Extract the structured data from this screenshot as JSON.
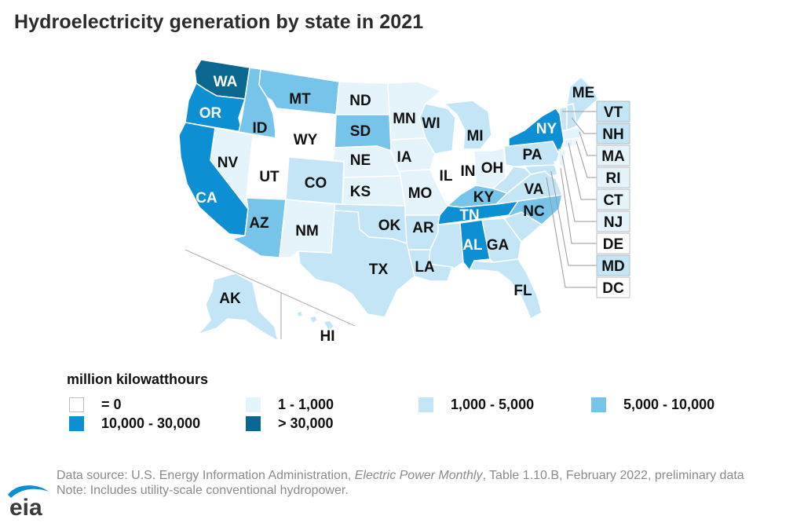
{
  "title": "Hydroelectricity generation by state in 2021",
  "colors": {
    "c0": "#ffffff",
    "c1": "#e5f4fb",
    "c2": "#c4e5f5",
    "c3": "#77c4ea",
    "c4": "#0d8fd4",
    "c5": "#0a6890",
    "border": "#ffffff",
    "leader": "#9a9a9a",
    "source_text": "#8a8a8a"
  },
  "legend": {
    "title": "million kilowatthours",
    "items": [
      {
        "label": "= 0",
        "color": "#ffffff"
      },
      {
        "label": "1 - 1,000",
        "color": "#e5f4fb"
      },
      {
        "label": "1,000 - 5,000",
        "color": "#c4e5f5"
      },
      {
        "label": "5,000 - 10,000",
        "color": "#77c4ea"
      },
      {
        "label": "10,000 - 30,000",
        "color": "#0d8fd4"
      },
      {
        "label": "> 30,000",
        "color": "#0a6890"
      }
    ]
  },
  "states": [
    {
      "code": "WA",
      "bin": "> 30,000"
    },
    {
      "code": "OR",
      "bin": "10,000 - 30,000"
    },
    {
      "code": "CA",
      "bin": "10,000 - 30,000"
    },
    {
      "code": "NY",
      "bin": "10,000 - 30,000"
    },
    {
      "code": "TN",
      "bin": "10,000 - 30,000"
    },
    {
      "code": "AL",
      "bin": "10,000 - 30,000"
    },
    {
      "code": "ID",
      "bin": "5,000 - 10,000"
    },
    {
      "code": "MT",
      "bin": "5,000 - 10,000"
    },
    {
      "code": "SD",
      "bin": "5,000 - 10,000"
    },
    {
      "code": "AZ",
      "bin": "5,000 - 10,000"
    },
    {
      "code": "KY",
      "bin": "5,000 - 10,000"
    },
    {
      "code": "NC",
      "bin": "5,000 - 10,000"
    },
    {
      "code": "VT",
      "bin": "1,000 - 5,000"
    },
    {
      "code": "NH",
      "bin": "1,000 - 5,000"
    },
    {
      "code": "MD",
      "bin": "1,000 - 5,000"
    },
    {
      "code": "RI",
      "bin": "1 - 1,000"
    },
    {
      "code": "DE",
      "bin": "= 0"
    },
    {
      "code": "DC",
      "bin": "= 0"
    }
  ],
  "labels": {
    "WA": "WA",
    "OR": "OR",
    "CA": "CA",
    "ID": "ID",
    "NV": "NV",
    "MT": "MT",
    "WY": "WY",
    "UT": "UT",
    "CO": "CO",
    "AZ": "AZ",
    "NM": "NM",
    "ND": "ND",
    "SD": "SD",
    "NE": "NE",
    "KS": "KS",
    "OK": "OK",
    "TX": "TX",
    "MN": "MN",
    "IA": "IA",
    "MO": "MO",
    "AR": "AR",
    "LA": "LA",
    "WI": "WI",
    "IL": "IL",
    "MI": "MI",
    "IN": "IN",
    "OH": "OH",
    "KY": "KY",
    "TN": "TN",
    "MS": "",
    "AL": "AL",
    "GA": "GA",
    "FL": "FL",
    "SC": "",
    "NC": "NC",
    "VA": "VA",
    "WV": "",
    "PA": "PA",
    "NY": "NY",
    "ME": "ME",
    "AK": "AK",
    "HI": "HI",
    "VT": "VT",
    "NH": "NH",
    "MA": "MA",
    "RI": "RI",
    "CT": "CT",
    "NJ": "NJ",
    "DE": "DE",
    "MD": "MD",
    "DC": "DC"
  },
  "source": {
    "prefix": "Data source: U.S. Energy Information Administration, ",
    "publication": "Electric Power Monthly",
    "suffix": ", Table 1.10.B, February 2022, preliminary data",
    "note": "Note: Includes utility-scale conventional hydropower."
  },
  "logo_text": "eia"
}
